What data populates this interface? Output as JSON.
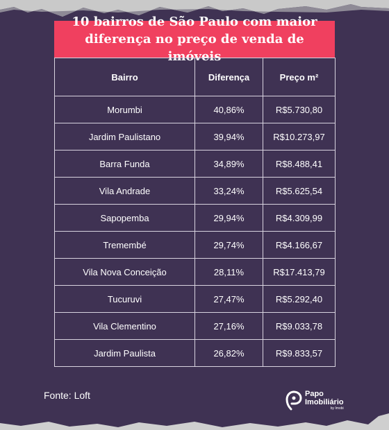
{
  "title": "10 bairros de São Paulo com maior diferença no preço de venda de imóveis",
  "table": {
    "headers": [
      "Bairro",
      "Diferença",
      "Preço m²"
    ],
    "rows": [
      {
        "bairro": "Morumbi",
        "diferenca": "40,86%",
        "preco": "R$5.730,80"
      },
      {
        "bairro": "Jardim Paulistano",
        "diferenca": "39,94%",
        "preco": "R$10.273,97"
      },
      {
        "bairro": "Barra Funda",
        "diferenca": "34,89%",
        "preco": "R$8.488,41"
      },
      {
        "bairro": "Vila Andrade",
        "diferenca": "33,24%",
        "preco": "R$5.625,54"
      },
      {
        "bairro": "Sapopemba",
        "diferenca": "29,94%",
        "preco": "R$4.309,99"
      },
      {
        "bairro": "Tremembé",
        "diferenca": "29,74%",
        "preco": "R$4.166,67"
      },
      {
        "bairro": "Vila Nova Conceição",
        "diferenca": "28,11%",
        "preco": "R$17.413,79"
      },
      {
        "bairro": "Tucuruvi",
        "diferenca": "27,47%",
        "preco": "R$5.292,40"
      },
      {
        "bairro": "Vila Clementino",
        "diferenca": "27,16%",
        "preco": "R$9.033,78"
      },
      {
        "bairro": "Jardim Paulista",
        "diferenca": "26,82%",
        "preco": "R$9.833,57"
      }
    ]
  },
  "source": "Fonte: Loft",
  "logo": {
    "line1": "Papo",
    "line2": "Imobiliário",
    "line3": "by Imobi",
    "icon": "p-swirl-icon"
  },
  "colors": {
    "background": "#3f3253",
    "title_bg": "#f0405f",
    "text": "#ffffff",
    "paper": "#c9c9c9"
  }
}
